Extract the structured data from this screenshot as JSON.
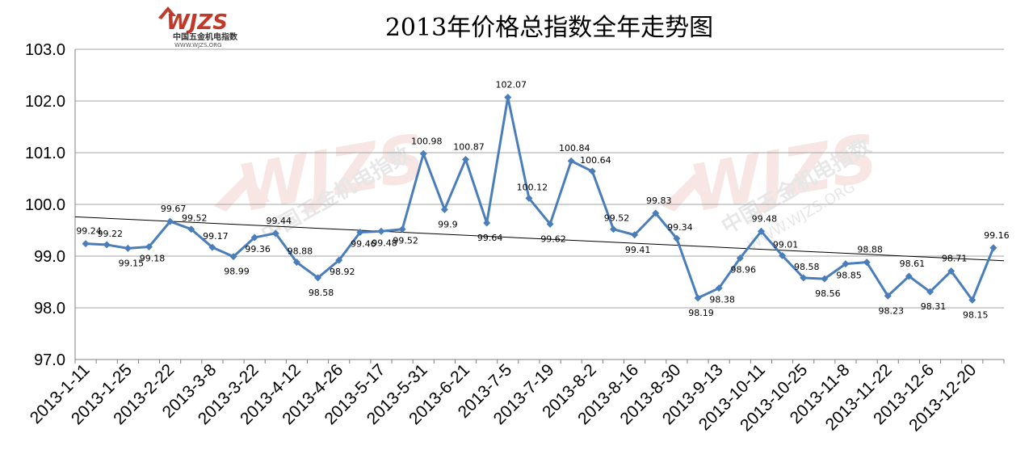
{
  "brand": {
    "logo_text": "WJZS",
    "logo_cn": "中国五金机电指数",
    "logo_url": "WWW.WJZS.ORG",
    "color": "#c0392b"
  },
  "chart_data": {
    "type": "line",
    "title": "2013年价格总指数全年走势图",
    "xlabel": "",
    "ylabel": "",
    "ylim": [
      97.0,
      103.0
    ],
    "yticks": [
      "97.0",
      "98.0",
      "99.0",
      "100.0",
      "101.0",
      "102.0",
      "103.0"
    ],
    "grid": true,
    "legend": "none",
    "line_color": "#4a7ebb",
    "xtick_labels": [
      "2013-1-11",
      "2013-1-25",
      "2013-2-22",
      "2013-3-8",
      "2013-3-22",
      "2013-4-12",
      "2013-4-26",
      "2013-5-17",
      "2013-5-31",
      "2013-6-21",
      "2013-7-5",
      "2013-7-19",
      "2013-8-2",
      "2013-8-16",
      "2013-8-30",
      "2013-9-13",
      "2013-10-11",
      "2013-10-25",
      "2013-11-8",
      "2013-11-22",
      "2013-12-6",
      "2013-12-20"
    ],
    "values": [
      99.24,
      99.22,
      99.15,
      99.18,
      99.67,
      99.52,
      99.17,
      98.99,
      99.36,
      99.44,
      98.88,
      98.58,
      98.92,
      99.46,
      99.48,
      99.52,
      100.98,
      99.9,
      100.87,
      99.64,
      102.07,
      100.12,
      99.62,
      100.84,
      100.64,
      99.52,
      99.41,
      99.83,
      99.34,
      98.19,
      98.38,
      98.96,
      99.48,
      99.01,
      98.58,
      98.56,
      98.85,
      98.88,
      98.23,
      98.61,
      98.31,
      98.71,
      98.15,
      99.16
    ],
    "data_labels": [
      "99.24",
      "99.22",
      "99.15",
      "99.18",
      "99.67",
      "99.52",
      "99.17",
      "98.99",
      "99.36",
      "99.44",
      "98.88",
      "98.58",
      "98.92",
      "99.46",
      "99.48",
      "99.52",
      "100.98",
      "99.9",
      "100.87",
      "99.64",
      "102.07",
      "100.12",
      "99.62",
      "100.84",
      "100.64",
      "99.52",
      "99.41",
      "99.83",
      "99.34",
      "98.19",
      "98.38",
      "98.96",
      "99.48",
      "99.01",
      "98.58",
      "98.56",
      "98.85",
      "98.88",
      "98.23",
      "98.61",
      "98.31",
      "98.71",
      "98.15",
      "99.16"
    ],
    "trendline": {
      "start": 99.76,
      "end": 98.91,
      "color": "#000000"
    }
  }
}
